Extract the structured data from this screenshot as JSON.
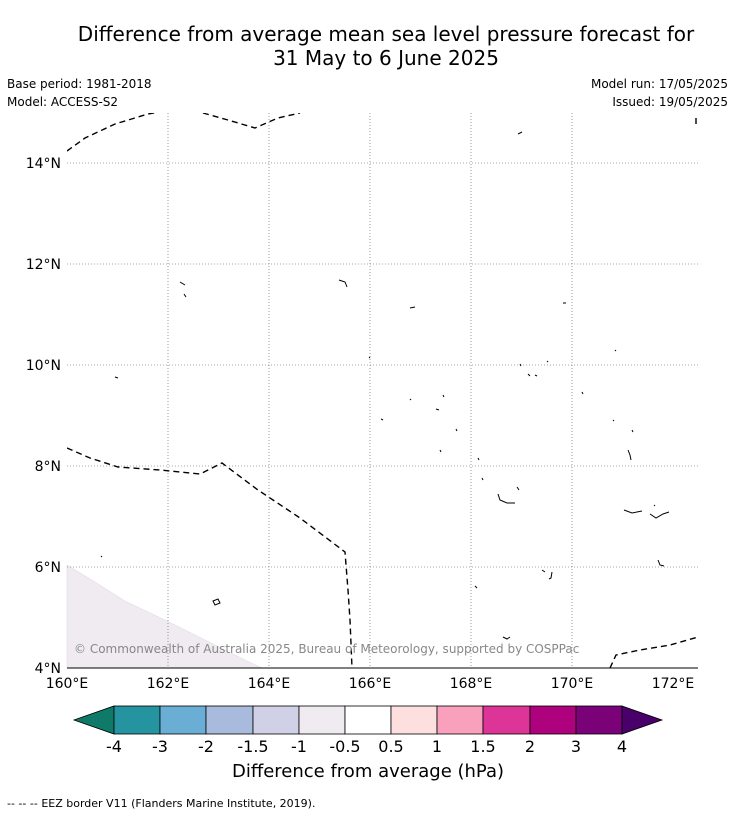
{
  "title": {
    "line1": "Difference from average mean sea level pressure forecast for",
    "line2": "31 May to 6 June 2025"
  },
  "meta": {
    "base_period": "Base period: 1981-2018",
    "model": "Model: ACCESS-S2",
    "model_run": "Model run: 17/05/2025",
    "issued": "Issued: 19/05/2025"
  },
  "map": {
    "lon_ticks": [
      "160°E",
      "162°E",
      "164°E",
      "166°E",
      "168°E",
      "170°E",
      "172°E"
    ],
    "lat_ticks": [
      "4°N",
      "6°N",
      "8°N",
      "10°N",
      "12°N",
      "14°N"
    ],
    "copyright": "© Commonwealth of Australia 2025, Bureau of Meteorology, supported by COSPPac",
    "shaded_region_color": "#efebf1"
  },
  "colorbar": {
    "label": "Difference from average (hPa)",
    "tick_labels": [
      "-4",
      "-3",
      "-2",
      "-1.5",
      "-1",
      "-0.5",
      "0.5",
      "1",
      "1.5",
      "2",
      "3",
      "4"
    ],
    "colors": [
      "#0f7a6a",
      "#2593a0",
      "#6aaed6",
      "#a8bbdd",
      "#d0d1e6",
      "#efebf1",
      "#ffffff",
      "#fddfe0",
      "#f8a0bc",
      "#dd3497",
      "#ae017e",
      "#7a0177",
      "#49006a"
    ]
  },
  "footer": {
    "legend_symbol": "-- -- --",
    "legend_text": "EEZ border V11 (Flanders Marine Institute, 2019)."
  }
}
